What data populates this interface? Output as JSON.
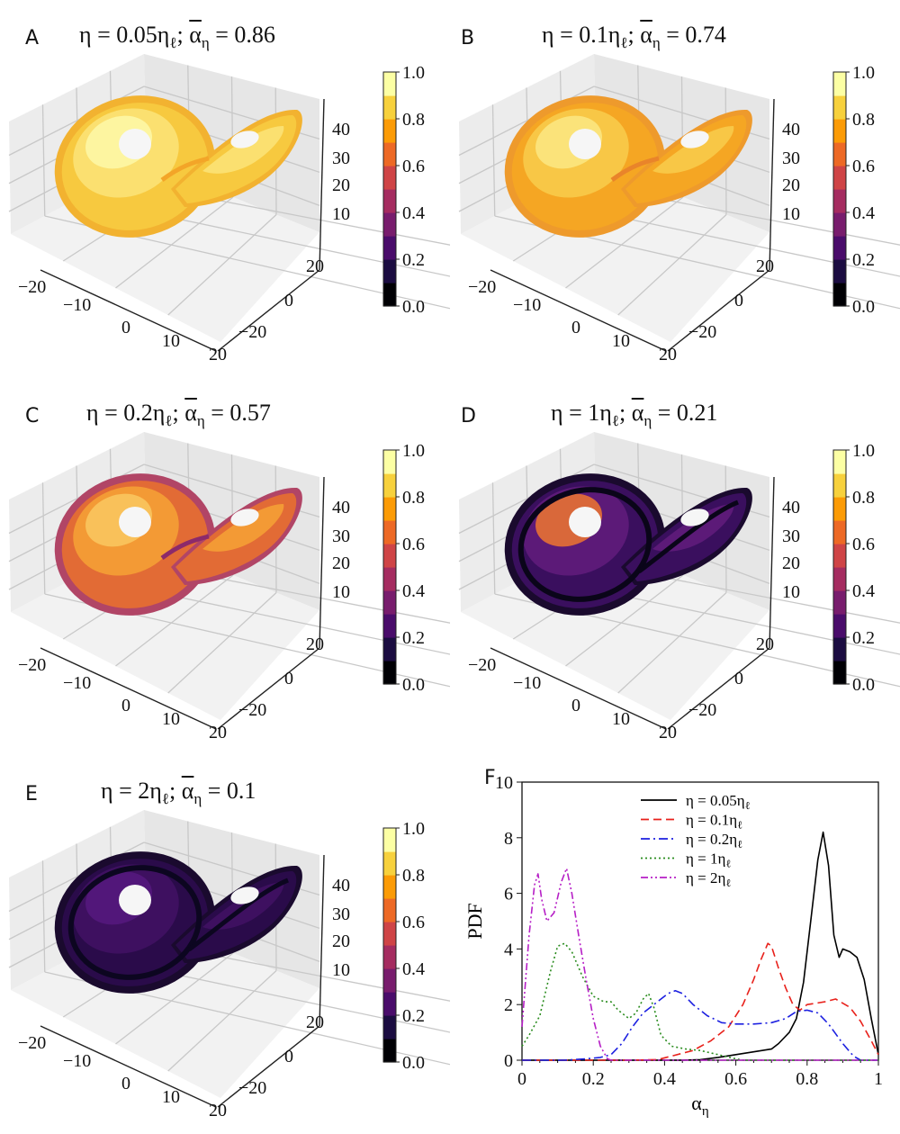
{
  "colorbar": {
    "ticks": [
      "0.0",
      "0.2",
      "0.4",
      "0.6",
      "0.8",
      "1.0"
    ],
    "colors": [
      "#000004",
      "#1b0c41",
      "#4a0c6b",
      "#781c6d",
      "#a52c60",
      "#cf4446",
      "#ed6925",
      "#fb9b06",
      "#f7d13d",
      "#fcffa4"
    ]
  },
  "axes3d": {
    "x_ticks": [
      "−20",
      "−10",
      "0",
      "10",
      "20"
    ],
    "y_ticks": [
      "−20",
      "0",
      "20"
    ],
    "z_ticks": [
      "10",
      "20",
      "30",
      "40"
    ]
  },
  "panels": [
    {
      "label": "A",
      "eta": "η = 0.05η",
      "sub_l": "ℓ",
      "alpha_pre": "; ",
      "alpha": "α",
      "sub_eta": "η",
      "value": " = 0.86",
      "mean_alpha": 0.86,
      "palette": [
        "#f7c93f",
        "#fbe070",
        "#fdf5a0",
        "#f3a528"
      ],
      "rim": "#f2b230"
    },
    {
      "label": "B",
      "eta": "η = 0.1η",
      "sub_l": "ℓ",
      "alpha_pre": "; ",
      "alpha": "α",
      "sub_eta": "η",
      "value": " = 0.74",
      "mean_alpha": 0.74,
      "palette": [
        "#f5a623",
        "#f8c746",
        "#fbe37a",
        "#e9842a"
      ],
      "rim": "#ee9a2c"
    },
    {
      "label": "C",
      "eta": "η = 0.2η",
      "sub_l": "ℓ",
      "alpha_pre": "; ",
      "alpha": "α",
      "sub_eta": "η",
      "value": " = 0.57",
      "mean_alpha": 0.57,
      "palette": [
        "#e26b35",
        "#f39a35",
        "#f9c15a",
        "#8c2a6a"
      ],
      "rim": "#b14566"
    },
    {
      "label": "D",
      "eta": "η = 1η",
      "sub_l": "ℓ",
      "alpha_pre": "; ",
      "alpha": "α",
      "sub_eta": "η",
      "value": " = 0.21",
      "mean_alpha": 0.21,
      "palette": [
        "#3a0f5e",
        "#5c1a78",
        "#d9683a",
        "#0a0519"
      ],
      "rim": "#1a0a2e"
    },
    {
      "label": "E",
      "eta": "η = 2η",
      "sub_l": "ℓ",
      "alpha_pre": "; ",
      "alpha": "α",
      "sub_eta": "η",
      "value": " = 0.1",
      "mean_alpha": 0.1,
      "palette": [
        "#2a0b4a",
        "#3e1060",
        "#52177a",
        "#0c0620"
      ],
      "rim": "#1a0a2e"
    }
  ],
  "chart_data": {
    "type": "line",
    "panel_label": "F",
    "xlabel": "α",
    "xlabel_sub": "η",
    "ylabel": "PDF",
    "xlim": [
      0,
      1
    ],
    "ylim": [
      0,
      10
    ],
    "x_ticks": [
      "0",
      "0.2",
      "0.4",
      "0.6",
      "0.8",
      "1"
    ],
    "y_ticks": [
      "0",
      "2",
      "4",
      "6",
      "8",
      "10"
    ],
    "legend_position": "top-center",
    "series": [
      {
        "name": "η = 0.05η",
        "name_sub": "ℓ",
        "color": "#000000",
        "dash": "",
        "x": [
          0,
          0.45,
          0.5,
          0.55,
          0.6,
          0.65,
          0.7,
          0.72,
          0.75,
          0.77,
          0.79,
          0.81,
          0.83,
          0.845,
          0.86,
          0.875,
          0.89,
          0.9,
          0.92,
          0.94,
          0.96,
          0.98,
          1.0
        ],
        "y": [
          0,
          0,
          0.02,
          0.1,
          0.2,
          0.3,
          0.4,
          0.6,
          1.0,
          1.5,
          2.8,
          5.0,
          7.2,
          8.2,
          7.0,
          4.5,
          3.7,
          4.0,
          3.9,
          3.7,
          2.9,
          1.5,
          0.2
        ]
      },
      {
        "name": "η = 0.1η",
        "name_sub": "ℓ",
        "color": "#e8211b",
        "dash": "9,5",
        "x": [
          0,
          0.3,
          0.38,
          0.42,
          0.48,
          0.53,
          0.58,
          0.62,
          0.65,
          0.67,
          0.69,
          0.7,
          0.72,
          0.74,
          0.76,
          0.78,
          0.8,
          0.85,
          0.88,
          0.92,
          0.95,
          0.98,
          1.0
        ],
        "y": [
          0,
          0,
          0.02,
          0.15,
          0.35,
          0.7,
          1.2,
          2.0,
          2.9,
          3.6,
          4.2,
          4.1,
          3.3,
          2.6,
          2.0,
          1.8,
          2.0,
          2.1,
          2.2,
          1.9,
          1.4,
          0.7,
          0.2
        ]
      },
      {
        "name": "η = 0.2η",
        "name_sub": "ℓ",
        "color": "#1b1fe0",
        "dash": "10,4,2,4",
        "x": [
          0,
          0.12,
          0.18,
          0.22,
          0.25,
          0.28,
          0.31,
          0.34,
          0.38,
          0.41,
          0.43,
          0.45,
          0.48,
          0.52,
          0.56,
          0.6,
          0.65,
          0.7,
          0.74,
          0.77,
          0.8,
          0.83,
          0.86,
          0.9,
          0.93,
          0.95,
          1.0
        ],
        "y": [
          0,
          0,
          0.05,
          0.1,
          0.2,
          0.6,
          1.2,
          1.7,
          2.1,
          2.4,
          2.5,
          2.4,
          2.0,
          1.6,
          1.35,
          1.3,
          1.3,
          1.35,
          1.5,
          1.75,
          1.8,
          1.7,
          1.3,
          0.6,
          0.15,
          0,
          0
        ]
      },
      {
        "name": "η = 1η",
        "name_sub": "ℓ",
        "color": "#2a8c1e",
        "dash": "2,3",
        "x": [
          0,
          0.02,
          0.05,
          0.08,
          0.1,
          0.12,
          0.14,
          0.17,
          0.2,
          0.23,
          0.25,
          0.27,
          0.3,
          0.32,
          0.34,
          0.355,
          0.37,
          0.39,
          0.42,
          0.46,
          0.5,
          0.55,
          0.6,
          0.62,
          1.0
        ],
        "y": [
          0.5,
          0.9,
          1.6,
          3.2,
          4.1,
          4.2,
          3.9,
          3.0,
          2.3,
          2.1,
          2.1,
          1.8,
          1.5,
          1.7,
          2.2,
          2.4,
          1.9,
          0.9,
          0.5,
          0.4,
          0.35,
          0.2,
          0.05,
          0,
          0
        ]
      },
      {
        "name": "η = 2η",
        "name_sub": "ℓ",
        "color": "#b61fc6",
        "dash": "8,3,2,3,2,3",
        "x": [
          0,
          0.02,
          0.035,
          0.045,
          0.055,
          0.07,
          0.09,
          0.11,
          0.125,
          0.14,
          0.16,
          0.18,
          0.2,
          0.22,
          0.24,
          0.25,
          1.0
        ],
        "y": [
          1.2,
          4.5,
          6.3,
          6.7,
          5.8,
          5.0,
          5.3,
          6.4,
          6.9,
          6.0,
          4.4,
          2.9,
          1.5,
          0.5,
          0.05,
          0,
          0
        ]
      }
    ]
  }
}
